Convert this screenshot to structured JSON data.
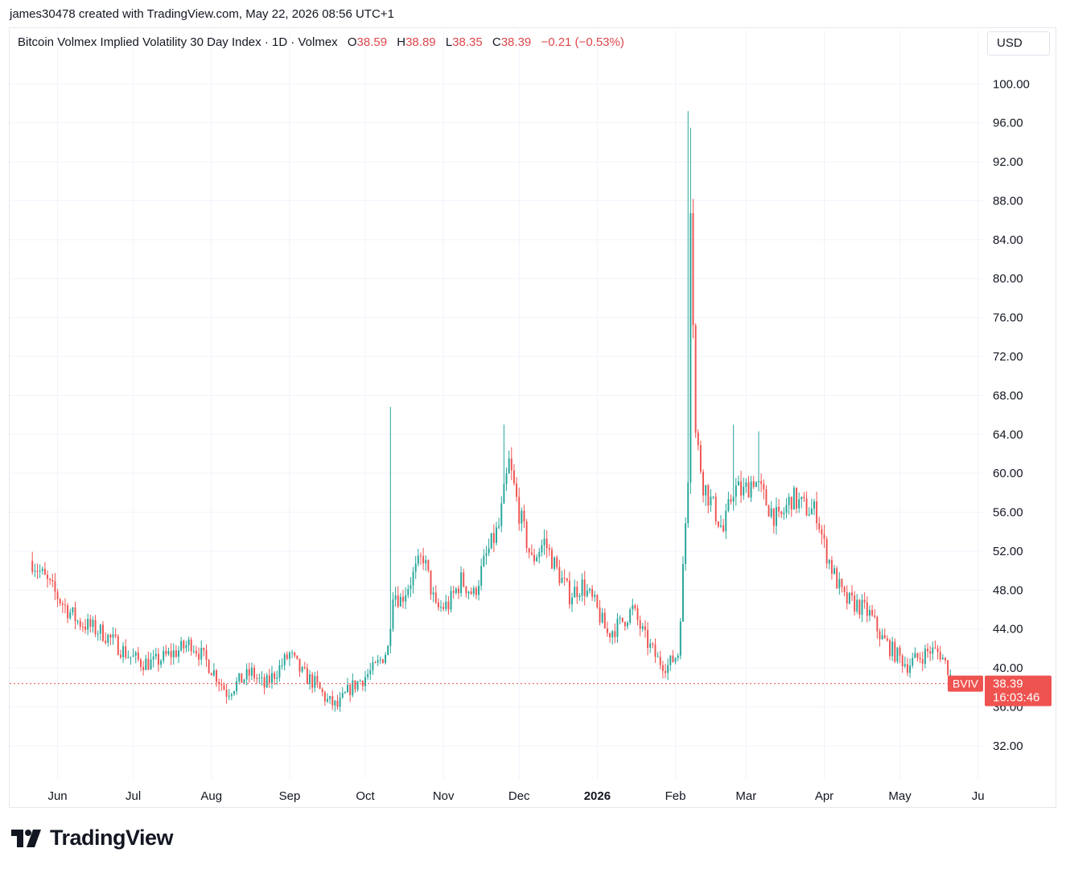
{
  "header": {
    "credit": "james30478 created with TradingView.com, May 22, 2026 08:56 UTC+1"
  },
  "legend": {
    "title": "Bitcoin Volmex Implied Volatility 30 Day Index · 1D · Volmex",
    "o_label": "O",
    "o_value": "38.59",
    "h_label": "H",
    "h_value": "38.89",
    "l_label": "L",
    "l_value": "38.35",
    "c_label": "C",
    "c_value": "38.39",
    "change": "−0.21 (−0.53%)"
  },
  "currency_button": "USD",
  "brand": {
    "name": "TradingView"
  },
  "colors": {
    "up": "#26a69a",
    "down": "#ef5350",
    "text_red": "#e0474c",
    "grid": "#f0f3fa"
  },
  "chart_data": {
    "type": "candlestick",
    "symbol": "BVIV",
    "timeframe": "1D",
    "ylim": [
      28.6,
      103
    ],
    "y_ticks": [
      "100.00",
      "96.00",
      "92.00",
      "88.00",
      "84.00",
      "80.00",
      "76.00",
      "72.00",
      "68.00",
      "64.00",
      "60.00",
      "56.00",
      "52.00",
      "48.00",
      "44.00",
      "40.00",
      "36.00",
      "32.00"
    ],
    "x_ticks": [
      {
        "label": "Jun",
        "bold": false
      },
      {
        "label": "Jul",
        "bold": false
      },
      {
        "label": "Aug",
        "bold": false
      },
      {
        "label": "Sep",
        "bold": false
      },
      {
        "label": "Oct",
        "bold": false
      },
      {
        "label": "Nov",
        "bold": false
      },
      {
        "label": "Dec",
        "bold": false
      },
      {
        "label": "2026",
        "bold": true
      },
      {
        "label": "Feb",
        "bold": false
      },
      {
        "label": "Mar",
        "bold": false
      },
      {
        "label": "Apr",
        "bold": false
      },
      {
        "label": "May",
        "bold": false
      },
      {
        "label": "Ju",
        "bold": false
      }
    ],
    "last_price": {
      "label": "BVIV",
      "value": "38.39",
      "countdown": "16:03:46",
      "price": 38.39
    },
    "closes": [
      {
        "date": "2025-05-22",
        "close": 51.0
      },
      {
        "date": "2025-05-26",
        "close": 49.5
      },
      {
        "date": "2025-05-30",
        "close": 48.0
      },
      {
        "date": "2025-06-04",
        "close": 46.3
      },
      {
        "date": "2025-06-09",
        "close": 44.8
      },
      {
        "date": "2025-06-14",
        "close": 44.2
      },
      {
        "date": "2025-06-19",
        "close": 43.6
      },
      {
        "date": "2025-06-24",
        "close": 42.5
      },
      {
        "date": "2025-06-29",
        "close": 41.3
      },
      {
        "date": "2025-07-04",
        "close": 40.6
      },
      {
        "date": "2025-07-09",
        "close": 40.5
      },
      {
        "date": "2025-07-14",
        "close": 41.2
      },
      {
        "date": "2025-07-19",
        "close": 41.8
      },
      {
        "date": "2025-07-24",
        "close": 42.6
      },
      {
        "date": "2025-07-29",
        "close": 41.0
      },
      {
        "date": "2025-08-03",
        "close": 39.2
      },
      {
        "date": "2025-08-07",
        "close": 37.5
      },
      {
        "date": "2025-08-12",
        "close": 38.6
      },
      {
        "date": "2025-08-17",
        "close": 39.5
      },
      {
        "date": "2025-08-22",
        "close": 38.1
      },
      {
        "date": "2025-08-27",
        "close": 39.7
      },
      {
        "date": "2025-09-01",
        "close": 41.4
      },
      {
        "date": "2025-09-06",
        "close": 39.4
      },
      {
        "date": "2025-09-11",
        "close": 38.4
      },
      {
        "date": "2025-09-16",
        "close": 36.6
      },
      {
        "date": "2025-09-20",
        "close": 36.0
      },
      {
        "date": "2025-09-25",
        "close": 37.9
      },
      {
        "date": "2025-09-30",
        "close": 38.9
      },
      {
        "date": "2025-10-05",
        "close": 40.0
      },
      {
        "date": "2025-10-10",
        "close": 42.0
      },
      {
        "date": "2025-10-12",
        "close": 48.0
      },
      {
        "date": "2025-10-15",
        "close": 47.0
      },
      {
        "date": "2025-10-19",
        "close": 49.0
      },
      {
        "date": "2025-10-24",
        "close": 51.5
      },
      {
        "date": "2025-10-29",
        "close": 46.0
      },
      {
        "date": "2025-11-03",
        "close": 46.5
      },
      {
        "date": "2025-11-08",
        "close": 49.0
      },
      {
        "date": "2025-11-13",
        "close": 47.5
      },
      {
        "date": "2025-11-18",
        "close": 51.5
      },
      {
        "date": "2025-11-23",
        "close": 54.5
      },
      {
        "date": "2025-11-27",
        "close": 61.0
      },
      {
        "date": "2025-12-01",
        "close": 56.0
      },
      {
        "date": "2025-12-06",
        "close": 51.0
      },
      {
        "date": "2025-12-11",
        "close": 53.0
      },
      {
        "date": "2025-12-16",
        "close": 50.0
      },
      {
        "date": "2025-12-21",
        "close": 47.5
      },
      {
        "date": "2025-12-26",
        "close": 48.5
      },
      {
        "date": "2025-12-31",
        "close": 46.5
      },
      {
        "date": "2026-01-05",
        "close": 43.5
      },
      {
        "date": "2026-01-10",
        "close": 44.5
      },
      {
        "date": "2026-01-15",
        "close": 46.0
      },
      {
        "date": "2026-01-20",
        "close": 43.0
      },
      {
        "date": "2026-01-25",
        "close": 40.8
      },
      {
        "date": "2026-01-29",
        "close": 40.2
      },
      {
        "date": "2026-02-02",
        "close": 41.5
      },
      {
        "date": "2026-02-04",
        "close": 50.0
      },
      {
        "date": "2026-02-06",
        "close": 60.0
      },
      {
        "date": "2026-02-07",
        "close": 88.5
      },
      {
        "date": "2026-02-09",
        "close": 64.0
      },
      {
        "date": "2026-02-12",
        "close": 59.0
      },
      {
        "date": "2026-02-16",
        "close": 56.5
      },
      {
        "date": "2026-02-20",
        "close": 54.0
      },
      {
        "date": "2026-02-24",
        "close": 58.5
      },
      {
        "date": "2026-02-28",
        "close": 58.0
      },
      {
        "date": "2026-03-04",
        "close": 59.5
      },
      {
        "date": "2026-03-09",
        "close": 57.0
      },
      {
        "date": "2026-03-14",
        "close": 55.0
      },
      {
        "date": "2026-03-19",
        "close": 57.5
      },
      {
        "date": "2026-03-24",
        "close": 56.5
      },
      {
        "date": "2026-03-29",
        "close": 56.0
      },
      {
        "date": "2026-04-01",
        "close": 52.5
      },
      {
        "date": "2026-04-05",
        "close": 49.5
      },
      {
        "date": "2026-04-09",
        "close": 47.0
      },
      {
        "date": "2026-04-14",
        "close": 46.5
      },
      {
        "date": "2026-04-19",
        "close": 45.5
      },
      {
        "date": "2026-04-24",
        "close": 43.0
      },
      {
        "date": "2026-04-29",
        "close": 41.5
      },
      {
        "date": "2026-05-04",
        "close": 40.3
      },
      {
        "date": "2026-05-08",
        "close": 41.0
      },
      {
        "date": "2026-05-13",
        "close": 41.8
      },
      {
        "date": "2026-05-17",
        "close": 41.5
      },
      {
        "date": "2026-05-20",
        "close": 40.0
      },
      {
        "date": "2026-05-22",
        "close": 38.39
      }
    ],
    "spikes": [
      {
        "date": "2025-10-11",
        "high": 66.8
      },
      {
        "date": "2025-11-25",
        "high": 65.0
      },
      {
        "date": "2026-02-06",
        "high": 97.2
      },
      {
        "date": "2026-02-07",
        "high": 95.5
      },
      {
        "date": "2026-02-24",
        "high": 65.0
      },
      {
        "date": "2026-03-06",
        "high": 64.3
      }
    ]
  }
}
